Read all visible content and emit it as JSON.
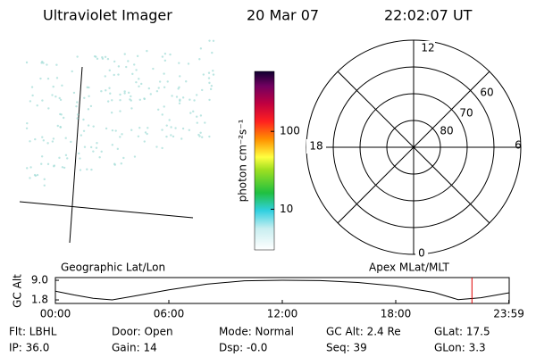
{
  "header": {
    "title": "Ultraviolet Imager",
    "date": "20 Mar 07",
    "time": "22:02:07 UT"
  },
  "colorbar": {
    "label": "photon cm⁻²s⁻¹",
    "range": [
      3,
      590
    ],
    "log": true,
    "ticks": [
      10,
      100
    ]
  },
  "polar": {
    "mlt_labels": [
      "12",
      "6",
      "0",
      "18"
    ],
    "mlat_labels": [
      "60",
      "70",
      "80"
    ]
  },
  "timeline": {
    "left_label": "Geographic Lat/Lon",
    "right_label": "Apex MLat/MLT",
    "y_label": "GC Alt",
    "ylim": [
      0.5,
      10.0
    ],
    "yticks": [
      {
        "value": 9.0,
        "label": "9.0"
      },
      {
        "value": 1.8,
        "label": "1.8"
      }
    ],
    "xlim": [
      0,
      24
    ],
    "xticks": [
      {
        "value": 0,
        "label": "00:00"
      },
      {
        "value": 6,
        "label": "06:00"
      },
      {
        "value": 12,
        "label": "12:00"
      },
      {
        "value": 18,
        "label": "18:00"
      },
      {
        "value": 23.98,
        "label": "23:59"
      }
    ],
    "x": [
      0,
      1,
      2,
      3,
      4,
      6,
      8,
      10,
      12,
      14,
      16,
      18,
      20,
      21.3,
      22.5,
      23.98
    ],
    "values": [
      5.0,
      3.6,
      2.4,
      1.8,
      3.0,
      5.5,
      7.6,
      8.8,
      9.0,
      8.9,
      8.2,
      6.9,
      4.6,
      1.9,
      2.6,
      4.4
    ],
    "marker": 22.03,
    "marker_color": "#e00000"
  },
  "info": [
    [
      "Flt: LBHL",
      "Door: Open",
      "Mode: Normal",
      "GC Alt: 2.4 Re",
      "GLat:  17.5"
    ],
    [
      "IP: 36.0",
      "Gain: 14",
      "Dsp:   -0.0",
      "Seq: 39",
      "GLon:  3.3"
    ]
  ]
}
